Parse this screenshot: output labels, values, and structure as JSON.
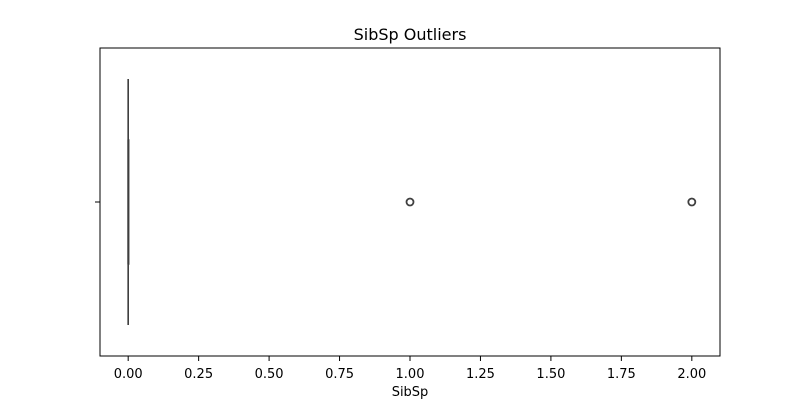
{
  "chart_data": {
    "type": "box",
    "orientation": "horizontal",
    "title": "SibSp Outliers",
    "xlabel": "SibSp",
    "ylabel": "",
    "xlim": [
      -0.1,
      2.1
    ],
    "x_ticks": [
      0.0,
      0.25,
      0.5,
      0.75,
      1.0,
      1.25,
      1.5,
      1.75,
      2.0
    ],
    "x_tick_labels": [
      "0.00",
      "0.25",
      "0.50",
      "0.75",
      "1.00",
      "1.25",
      "1.50",
      "1.75",
      "2.00"
    ],
    "grid": false,
    "legend": "none",
    "box": {
      "min": 0,
      "q1": 0,
      "median": 0,
      "q3": 0,
      "max": 0,
      "outliers": [
        1,
        2
      ]
    },
    "colors": {
      "line": "#3f3f3f",
      "axis": "#000000"
    }
  }
}
